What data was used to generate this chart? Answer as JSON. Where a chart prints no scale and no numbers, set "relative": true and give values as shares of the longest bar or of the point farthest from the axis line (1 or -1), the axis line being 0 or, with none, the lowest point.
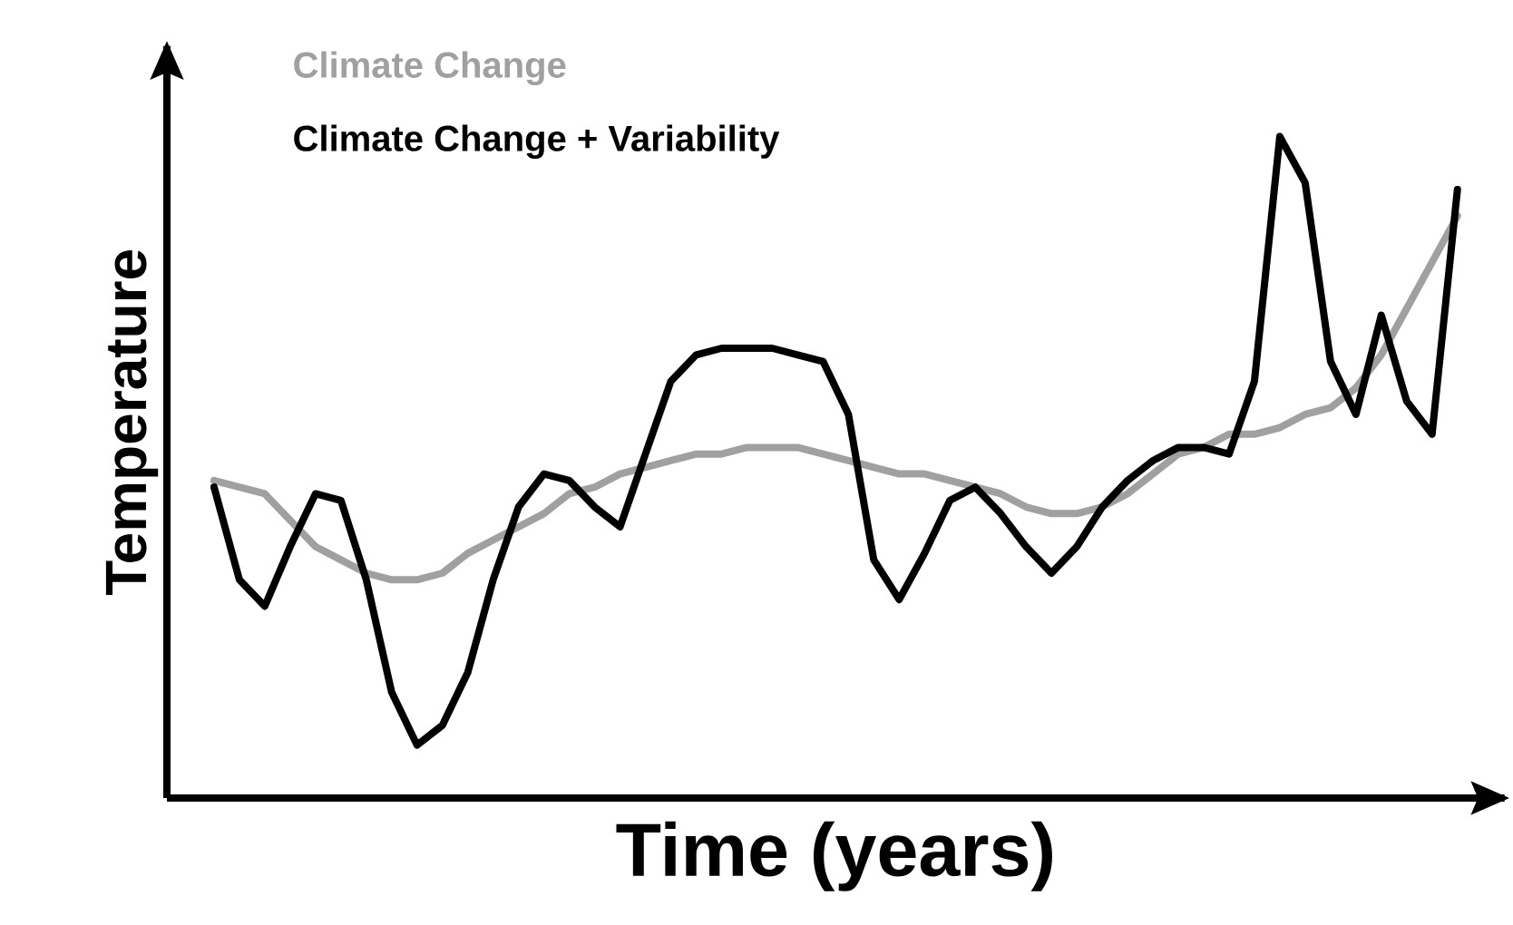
{
  "chart_data": {
    "type": "line",
    "relative": true,
    "xlabel": "Time (years)",
    "ylabel": "Temperature",
    "legend": "top left",
    "categories": [
      null,
      null,
      null,
      null,
      null,
      null,
      null,
      null,
      null,
      null,
      null,
      null,
      null,
      null,
      null,
      null,
      null,
      null,
      null,
      null,
      null,
      null,
      null,
      null,
      null,
      null,
      null,
      null,
      null,
      null,
      null,
      null,
      null,
      null,
      null,
      null,
      null,
      null,
      null,
      null,
      null,
      null,
      null,
      null,
      null,
      null,
      null,
      null,
      null,
      null
    ],
    "series": [
      {
        "name": "Climate Change",
        "color": "#a0a0a0",
        "values": [
          0.48,
          0.47,
          0.46,
          0.42,
          0.38,
          0.36,
          0.34,
          0.33,
          0.33,
          0.34,
          0.37,
          0.39,
          0.41,
          0.43,
          0.46,
          0.47,
          0.49,
          0.5,
          0.51,
          0.52,
          0.52,
          0.53,
          0.53,
          0.53,
          0.52,
          0.51,
          0.5,
          0.49,
          0.49,
          0.48,
          0.47,
          0.46,
          0.44,
          0.43,
          0.43,
          0.44,
          0.46,
          0.49,
          0.52,
          0.53,
          0.55,
          0.55,
          0.56,
          0.58,
          0.59,
          0.62,
          0.67,
          0.74,
          0.81,
          0.88
        ]
      },
      {
        "name": "Climate Change + Variability",
        "color": "#000000",
        "values": [
          0.47,
          0.33,
          0.29,
          0.38,
          0.46,
          0.45,
          0.33,
          0.16,
          0.08,
          0.11,
          0.19,
          0.33,
          0.44,
          0.49,
          0.48,
          0.44,
          0.41,
          0.52,
          0.63,
          0.67,
          0.68,
          0.68,
          0.68,
          0.67,
          0.66,
          0.58,
          0.36,
          0.3,
          0.37,
          0.45,
          0.47,
          0.43,
          0.38,
          0.34,
          0.38,
          0.44,
          0.48,
          0.51,
          0.53,
          0.53,
          0.52,
          0.63,
          1.0,
          0.93,
          0.66,
          0.58,
          0.73,
          0.6,
          0.55,
          0.92
        ]
      }
    ]
  }
}
